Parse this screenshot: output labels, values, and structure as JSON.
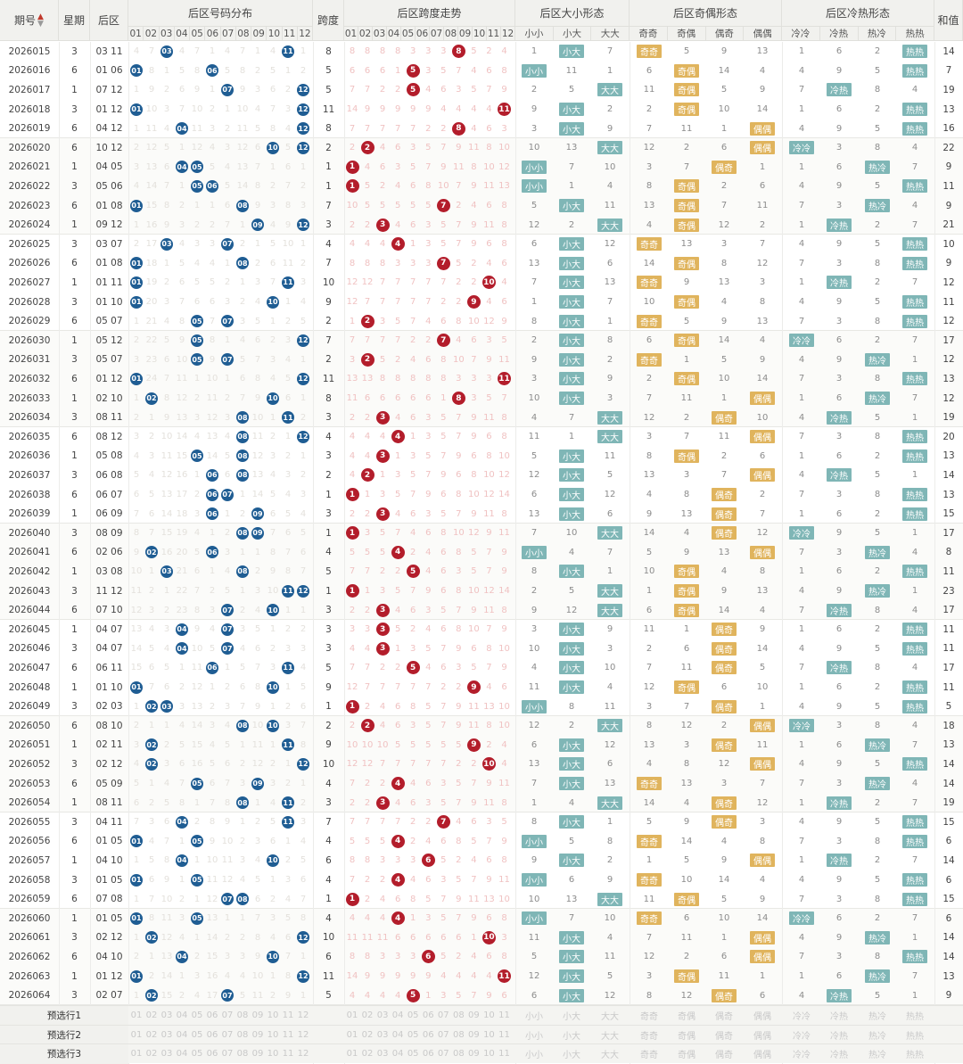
{
  "header": {
    "period": "期号",
    "sort_icon": "sort-arrows-icon",
    "week": "星期",
    "back": "后区",
    "dist": "后区号码分布",
    "span": "跨度",
    "span_trend": "后区跨度走势",
    "bs": "后区大小形态",
    "oe": "后区奇偶形态",
    "hc": "后区冷热形态",
    "sum": "和值",
    "bs_sub": [
      "小小",
      "小大",
      "大大"
    ],
    "oe_sub": [
      "奇奇",
      "奇偶",
      "偶奇",
      "偶偶"
    ],
    "hc_sub": [
      "冷冷",
      "冷热",
      "热冷",
      "热热"
    ],
    "nums": [
      "01",
      "02",
      "03",
      "04",
      "05",
      "06",
      "07",
      "08",
      "09",
      "10",
      "11",
      "12"
    ]
  },
  "rows": [
    {
      "p": "2026015",
      "w": "3",
      "b": "03 11",
      "s": "8",
      "sum": "14"
    },
    {
      "p": "2026016",
      "w": "6",
      "b": "01 06",
      "s": "5",
      "sum": "7"
    },
    {
      "p": "2026017",
      "w": "1",
      "b": "07 12",
      "s": "5",
      "sum": "19"
    },
    {
      "p": "2026018",
      "w": "3",
      "b": "01 12",
      "s": "11",
      "sum": "13"
    },
    {
      "p": "2026019",
      "w": "6",
      "b": "04 12",
      "s": "8",
      "sum": "16"
    },
    {
      "p": "2026020",
      "w": "6",
      "b": "10 12",
      "s": "2",
      "sum": "22"
    },
    {
      "p": "2026021",
      "w": "1",
      "b": "04 05",
      "s": "1",
      "sum": "9"
    },
    {
      "p": "2026022",
      "w": "3",
      "b": "05 06",
      "s": "1",
      "sum": "11"
    },
    {
      "p": "2026023",
      "w": "6",
      "b": "01 08",
      "s": "7",
      "sum": "9"
    },
    {
      "p": "2026024",
      "w": "1",
      "b": "09 12",
      "s": "3",
      "sum": "21"
    },
    {
      "p": "2026025",
      "w": "3",
      "b": "03 07",
      "s": "4",
      "sum": "10"
    },
    {
      "p": "2026026",
      "w": "6",
      "b": "01 08",
      "s": "7",
      "sum": "9"
    },
    {
      "p": "2026027",
      "w": "1",
      "b": "01 11",
      "s": "10",
      "sum": "12"
    },
    {
      "p": "2026028",
      "w": "3",
      "b": "01 10",
      "s": "9",
      "sum": "11"
    },
    {
      "p": "2026029",
      "w": "6",
      "b": "05 07",
      "s": "2",
      "sum": "12"
    },
    {
      "p": "2026030",
      "w": "1",
      "b": "05 12",
      "s": "7",
      "sum": "17"
    },
    {
      "p": "2026031",
      "w": "3",
      "b": "05 07",
      "s": "2",
      "sum": "12"
    },
    {
      "p": "2026032",
      "w": "6",
      "b": "01 12",
      "s": "11",
      "sum": "13"
    },
    {
      "p": "2026033",
      "w": "1",
      "b": "02 10",
      "s": "8",
      "sum": "12"
    },
    {
      "p": "2026034",
      "w": "3",
      "b": "08 11",
      "s": "3",
      "sum": "19"
    },
    {
      "p": "2026035",
      "w": "6",
      "b": "08 12",
      "s": "4",
      "sum": "20"
    },
    {
      "p": "2026036",
      "w": "1",
      "b": "05 08",
      "s": "3",
      "sum": "13"
    },
    {
      "p": "2026037",
      "w": "3",
      "b": "06 08",
      "s": "2",
      "sum": "14"
    },
    {
      "p": "2026038",
      "w": "6",
      "b": "06 07",
      "s": "1",
      "sum": "13"
    },
    {
      "p": "2026039",
      "w": "1",
      "b": "06 09",
      "s": "3",
      "sum": "15"
    },
    {
      "p": "2026040",
      "w": "3",
      "b": "08 09",
      "s": "1",
      "sum": "17"
    },
    {
      "p": "2026041",
      "w": "6",
      "b": "02 06",
      "s": "4",
      "sum": "8"
    },
    {
      "p": "2026042",
      "w": "1",
      "b": "03 08",
      "s": "5",
      "sum": "11"
    },
    {
      "p": "2026043",
      "w": "3",
      "b": "11 12",
      "s": "1",
      "sum": "23"
    },
    {
      "p": "2026044",
      "w": "6",
      "b": "07 10",
      "s": "3",
      "sum": "17"
    },
    {
      "p": "2026045",
      "w": "1",
      "b": "04 07",
      "s": "3",
      "sum": "11"
    },
    {
      "p": "2026046",
      "w": "3",
      "b": "04 07",
      "s": "3",
      "sum": "11"
    },
    {
      "p": "2026047",
      "w": "6",
      "b": "06 11",
      "s": "5",
      "sum": "17"
    },
    {
      "p": "2026048",
      "w": "1",
      "b": "01 10",
      "s": "9",
      "sum": "11"
    },
    {
      "p": "2026049",
      "w": "3",
      "b": "02 03",
      "s": "1",
      "sum": "5"
    },
    {
      "p": "2026050",
      "w": "6",
      "b": "08 10",
      "s": "2",
      "sum": "18"
    },
    {
      "p": "2026051",
      "w": "1",
      "b": "02 11",
      "s": "9",
      "sum": "13"
    },
    {
      "p": "2026052",
      "w": "3",
      "b": "02 12",
      "s": "10",
      "sum": "14"
    },
    {
      "p": "2026053",
      "w": "6",
      "b": "05 09",
      "s": "4",
      "sum": "14"
    },
    {
      "p": "2026054",
      "w": "1",
      "b": "08 11",
      "s": "3",
      "sum": "19"
    },
    {
      "p": "2026055",
      "w": "3",
      "b": "04 11",
      "s": "7",
      "sum": "15"
    },
    {
      "p": "2026056",
      "w": "6",
      "b": "01 05",
      "s": "4",
      "sum": "6"
    },
    {
      "p": "2026057",
      "w": "1",
      "b": "04 10",
      "s": "6",
      "sum": "14"
    },
    {
      "p": "2026058",
      "w": "3",
      "b": "01 05",
      "s": "4",
      "sum": "6"
    },
    {
      "p": "2026059",
      "w": "6",
      "b": "07 08",
      "s": "1",
      "sum": "15"
    },
    {
      "p": "2026060",
      "w": "1",
      "b": "01 05",
      "s": "4",
      "sum": "6"
    },
    {
      "p": "2026061",
      "w": "3",
      "b": "02 12",
      "s": "10",
      "sum": "14"
    },
    {
      "p": "2026062",
      "w": "6",
      "b": "04 10",
      "s": "6",
      "sum": "14"
    },
    {
      "p": "2026063",
      "w": "1",
      "b": "01 12",
      "s": "11",
      "sum": "13"
    },
    {
      "p": "2026064",
      "w": "3",
      "b": "02 07",
      "s": "5",
      "sum": "9"
    }
  ],
  "pred_rows": [
    "预选行1",
    "预选行2",
    "预选行3"
  ],
  "labels": {
    "bs": {
      "ss": "小小",
      "sb": "小大",
      "bb": "大大"
    },
    "oe": {
      "oo": "奇奇",
      "oev": "奇偶",
      "eo": "偶奇",
      "ee": "偶偶"
    },
    "hc": {
      "cc": "冷冷",
      "ch": "冷热",
      "hcv": "热冷",
      "hh": "热热"
    }
  },
  "colors": {
    "blue_ball": "#1f5d93",
    "red_ball": "#b31d2b",
    "teal_pill": "#7fb6b6",
    "gold_pill": "#e0b45d",
    "zigzag": "#a8443d",
    "bs_line": "#8ab8b8",
    "oe_line": "#e6c684",
    "hc_line": "#8ab8b8"
  }
}
